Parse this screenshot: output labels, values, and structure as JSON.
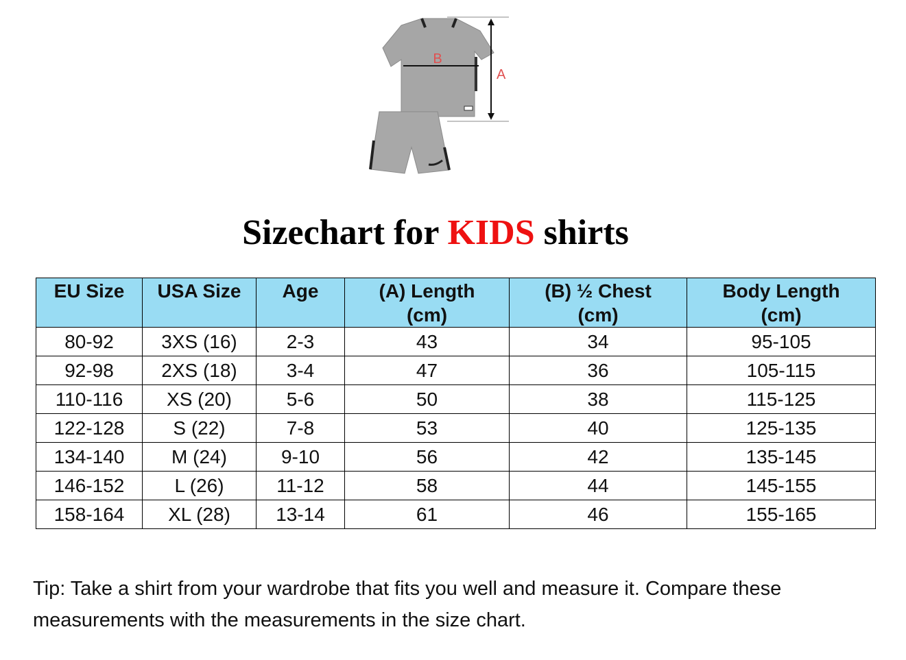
{
  "diagram": {
    "label_a": "A",
    "label_b": "B"
  },
  "title": {
    "prefix": "Sizechart for ",
    "highlight": "KIDS",
    "suffix": " shirts",
    "highlight_color": "#ee1111"
  },
  "table": {
    "header_color": "#99dcf3",
    "headers": [
      "EU Size",
      "USA Size",
      "Age",
      "(A) Length\n(cm)",
      "(B) ½ Chest\n(cm)",
      "Body Length\n(cm)"
    ],
    "rows": [
      [
        "80-92",
        "3XS (16)",
        "2-3",
        "43",
        "34",
        "95-105"
      ],
      [
        "92-98",
        "2XS (18)",
        "3-4",
        "47",
        "36",
        "105-115"
      ],
      [
        "110-116",
        "XS (20)",
        "5-6",
        "50",
        "38",
        "115-125"
      ],
      [
        "122-128",
        "S (22)",
        "7-8",
        "53",
        "40",
        "125-135"
      ],
      [
        "134-140",
        "M (24)",
        "9-10",
        "56",
        "42",
        "135-145"
      ],
      [
        "146-152",
        "L (26)",
        "11-12",
        "58",
        "44",
        "145-155"
      ],
      [
        "158-164",
        "XL (28)",
        "13-14",
        "61",
        "46",
        "155-165"
      ]
    ]
  },
  "tip": "Tip: Take a shirt from your wardrobe that fits you well and measure it. Compare these measurements with the measurements in the size chart."
}
